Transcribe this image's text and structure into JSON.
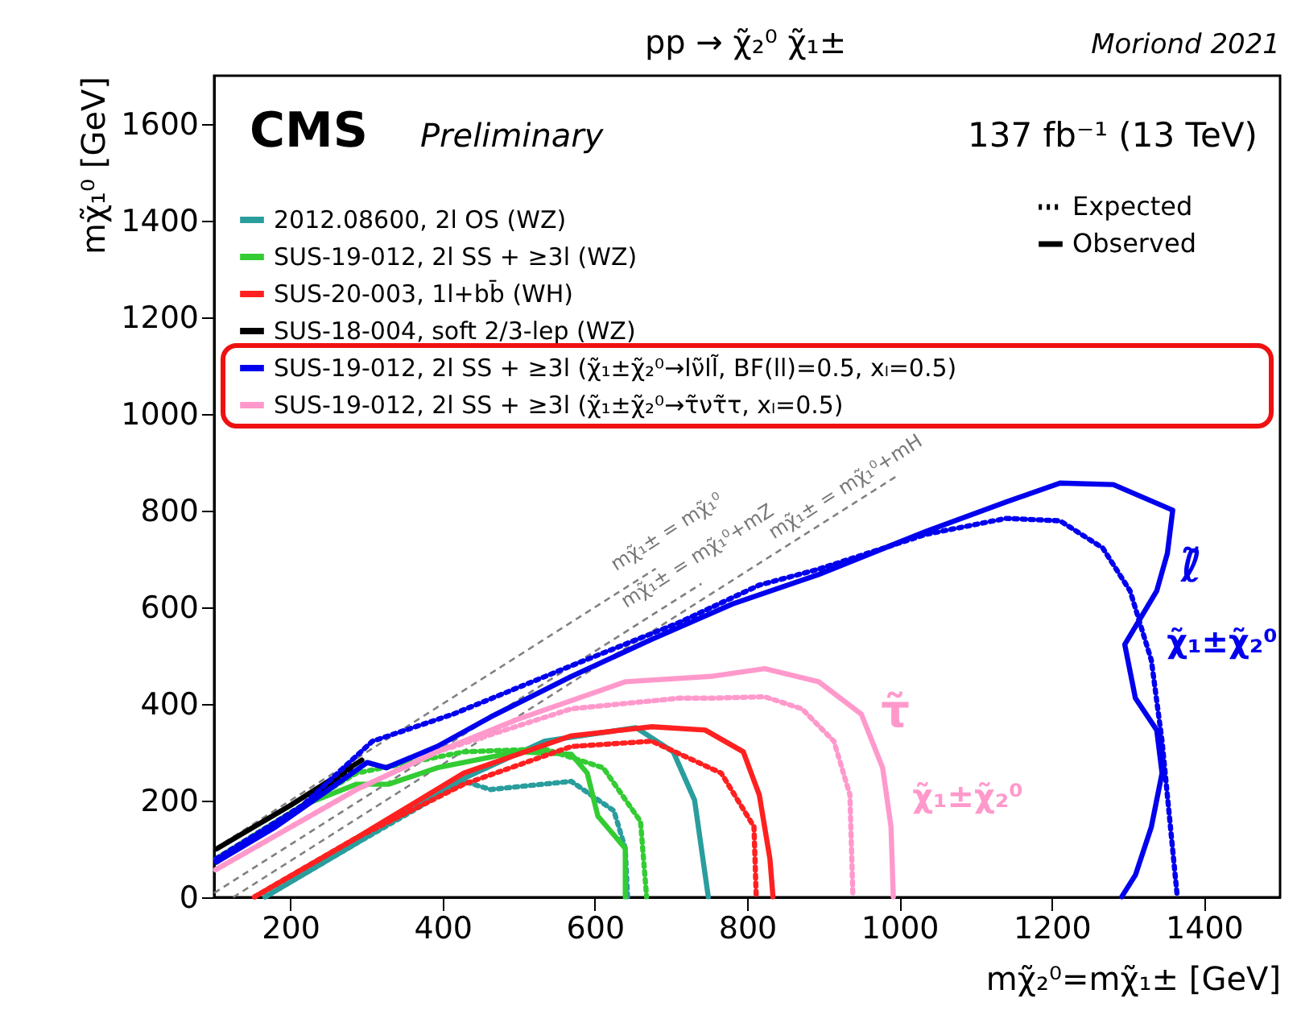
{
  "chart_data": {
    "type": "line",
    "title": "pp → χ̃₂⁰ χ̃₁±",
    "xlabel": "mχ̃₂⁰=mχ̃₁± [GeV]",
    "ylabel": "mχ̃₁⁰ [GeV]",
    "xlim": [
      100,
      1500
    ],
    "ylim": [
      0,
      1700
    ],
    "xticks": [
      200,
      400,
      600,
      800,
      1000,
      1200,
      1400
    ],
    "yticks": [
      0,
      200,
      400,
      600,
      800,
      1000,
      1200,
      1400,
      1600
    ],
    "grid": false,
    "legend": "top left",
    "marker": "none",
    "series": [
      {
        "type": "line",
        "color": "#808080",
        "line_style": "dashed",
        "x": [
          100,
          680
        ],
        "values": [
          100,
          680
        ]
      },
      {
        "type": "line",
        "color": "#808080",
        "line_style": "dashed",
        "x": [
          100,
          740
        ],
        "values": [
          9,
          649
        ]
      },
      {
        "type": "line",
        "color": "#808080",
        "line_style": "dashed",
        "x": [
          125,
          1000
        ],
        "values": [
          0,
          875
        ]
      },
      {
        "name": "2012.08600, 2l OS (WZ)",
        "color": "#2a9d9d",
        "line_style": "solid",
        "x": [
          167,
          287,
          428,
          534,
          654,
          703,
          731,
          749
        ],
        "values": [
          1,
          112,
          246,
          323,
          351,
          301,
          201,
          1
        ]
      },
      {
        "color": "#2a9d9d",
        "line_style": "dotted",
        "x": [
          167,
          287,
          428,
          463,
          569,
          625,
          640,
          643
        ],
        "values": [
          1,
          112,
          240,
          223,
          240,
          179,
          101,
          1
        ]
      },
      {
        "name": "SUS-19-012, 2l SS + ≥3l (WZ)",
        "color": "#33cc33",
        "line_style": "solid",
        "x": [
          103,
          216,
          287,
          329,
          393,
          498,
          569,
          590,
          604,
          640,
          640
        ],
        "values": [
          80,
          190,
          234,
          234,
          268,
          301,
          296,
          257,
          168,
          101,
          1
        ]
      },
      {
        "color": "#33cc33",
        "line_style": "dotted",
        "x": [
          103,
          216,
          287,
          428,
          534,
          611,
          660,
          668
        ],
        "values": [
          80,
          190,
          257,
          301,
          307,
          268,
          157,
          1
        ]
      },
      {
        "name": "SUS-20-003, 1l+bb̄ (WH)",
        "color": "#ff2020",
        "line_style": "solid",
        "x": [
          153,
          287,
          428,
          569,
          675,
          745,
          795,
          816,
          830,
          834
        ],
        "values": [
          1,
          123,
          257,
          334,
          353,
          346,
          301,
          212,
          79,
          1
        ]
      },
      {
        "color": "#ff2020",
        "line_style": "dotted",
        "x": [
          153,
          287,
          428,
          569,
          675,
          766,
          809,
          812
        ],
        "values": [
          1,
          123,
          234,
          312,
          323,
          257,
          146,
          1
        ]
      },
      {
        "name": "SUS-18-004, soft 2/3-lep (WZ)",
        "color": "#000000",
        "line_style": "solid",
        "x": [
          103,
          200,
          294
        ],
        "values": [
          100,
          190,
          284
        ]
      },
      {
        "color": "#000000",
        "line_style": "dotted",
        "x": [
          103,
          200,
          280
        ],
        "values": [
          73,
          170,
          268
        ]
      },
      {
        "name": "SUS-19-012, 2l SS + ≥3l (χ̃₁±χ̃₂⁰→lν̃ll̃, BF(ll)=0.5, xₗ=0.5)",
        "color": "#0000ee",
        "line_style": "solid",
        "x": [
          103,
          181,
          251,
          301,
          326,
          393,
          463,
          569,
          675,
          781,
          894,
          1035,
          1140,
          1211,
          1281,
          1359,
          1352,
          1338,
          1296,
          1310,
          1338,
          1345,
          1331,
          1310,
          1292
        ],
        "values": [
          73,
          146,
          223,
          279,
          268,
          312,
          373,
          457,
          534,
          607,
          668,
          757,
          818,
          857,
          854,
          801,
          712,
          634,
          523,
          412,
          346,
          257,
          146,
          46,
          1
        ]
      },
      {
        "color": "#0000ee",
        "line_style": "dotted",
        "x": [
          103,
          216,
          308,
          414,
          569,
          710,
          816,
          894,
          1035,
          1140,
          1211,
          1267,
          1303,
          1331,
          1345,
          1356,
          1365
        ],
        "values": [
          80,
          190,
          323,
          379,
          479,
          568,
          646,
          679,
          751,
          784,
          779,
          723,
          634,
          490,
          323,
          146,
          1
        ]
      },
      {
        "name": "SUS-19-012, 2l SS + ≥3l (χ̃₁±χ̃₂⁰→τ̃ντ̃τ, xₗ=0.5)",
        "color": "#ff99cc",
        "line_style": "solid",
        "x": [
          102,
          287,
          393,
          498,
          640,
          752,
          823,
          894,
          950,
          978,
          989,
          992
        ],
        "values": [
          57,
          223,
          301,
          368,
          446,
          457,
          473,
          446,
          379,
          268,
          146,
          1
        ]
      },
      {
        "color": "#ff99cc",
        "line_style": "dotted",
        "x": [
          102,
          287,
          393,
          569,
          710,
          752,
          823,
          872,
          914,
          935,
          939
        ],
        "values": [
          57,
          223,
          301,
          390,
          412,
          412,
          415,
          390,
          323,
          212,
          1
        ]
      }
    ],
    "annotations": [
      "Expected",
      "Observed",
      "CMS",
      "Preliminary",
      "137 fb⁻¹ (13 TeV)",
      "Moriond 2021",
      "mχ̃₁± = mχ̃₁⁰",
      "mχ̃₁± = mχ̃₁⁰+mZ",
      "mχ̃₁± = mχ̃₁⁰+mH",
      "ℓ̃",
      "χ̃₁±χ̃₂⁰",
      "τ̃",
      "χ̃₁±χ̃₂⁰"
    ]
  }
}
